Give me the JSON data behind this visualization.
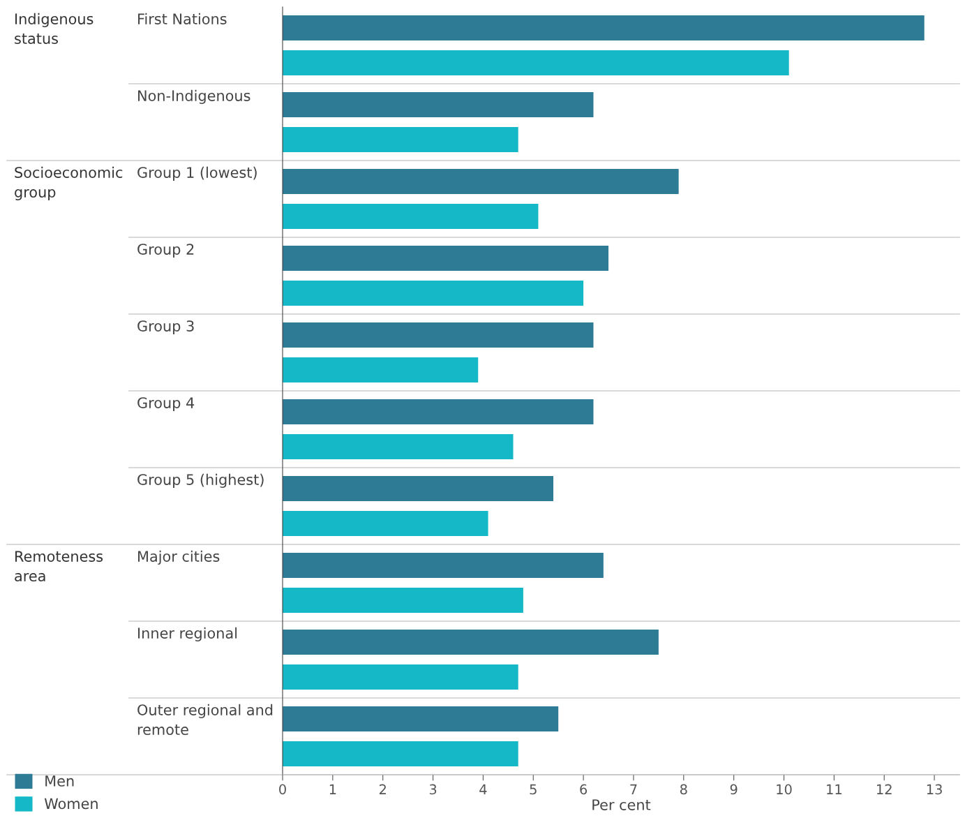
{
  "chart_data": {
    "type": "bar",
    "orientation": "horizontal",
    "xlabel": "Per cent",
    "categories": [
      "First Nations",
      "Non-Indigenous",
      "Group 1 (lowest)",
      "Group 2",
      "Group 3",
      "Group 4",
      "Group 5 (highest)",
      "Major cities",
      "Inner regional",
      "Outer regional and\nremote"
    ],
    "series": [
      {
        "name": "Men",
        "color": "#2e7b96",
        "values": [
          12.8,
          6.2,
          7.9,
          6.5,
          6.2,
          6.2,
          5.4,
          6.4,
          7.5,
          5.5
        ]
      },
      {
        "name": "Women",
        "color": "#14b8c6",
        "values": [
          10.1,
          4.7,
          5.1,
          6.0,
          3.9,
          4.6,
          4.1,
          4.8,
          4.7,
          4.7
        ]
      }
    ],
    "annotations": [
      "Indigenous\nstatus",
      "Socioeconomic\ngroup",
      "Remoteness\narea"
    ],
    "xlim": [
      0,
      13.5
    ],
    "xticks": [
      0,
      1,
      2,
      3,
      4,
      5,
      6,
      7,
      8,
      9,
      10,
      11,
      12,
      13
    ],
    "grid": false,
    "legend": "bottom left"
  }
}
